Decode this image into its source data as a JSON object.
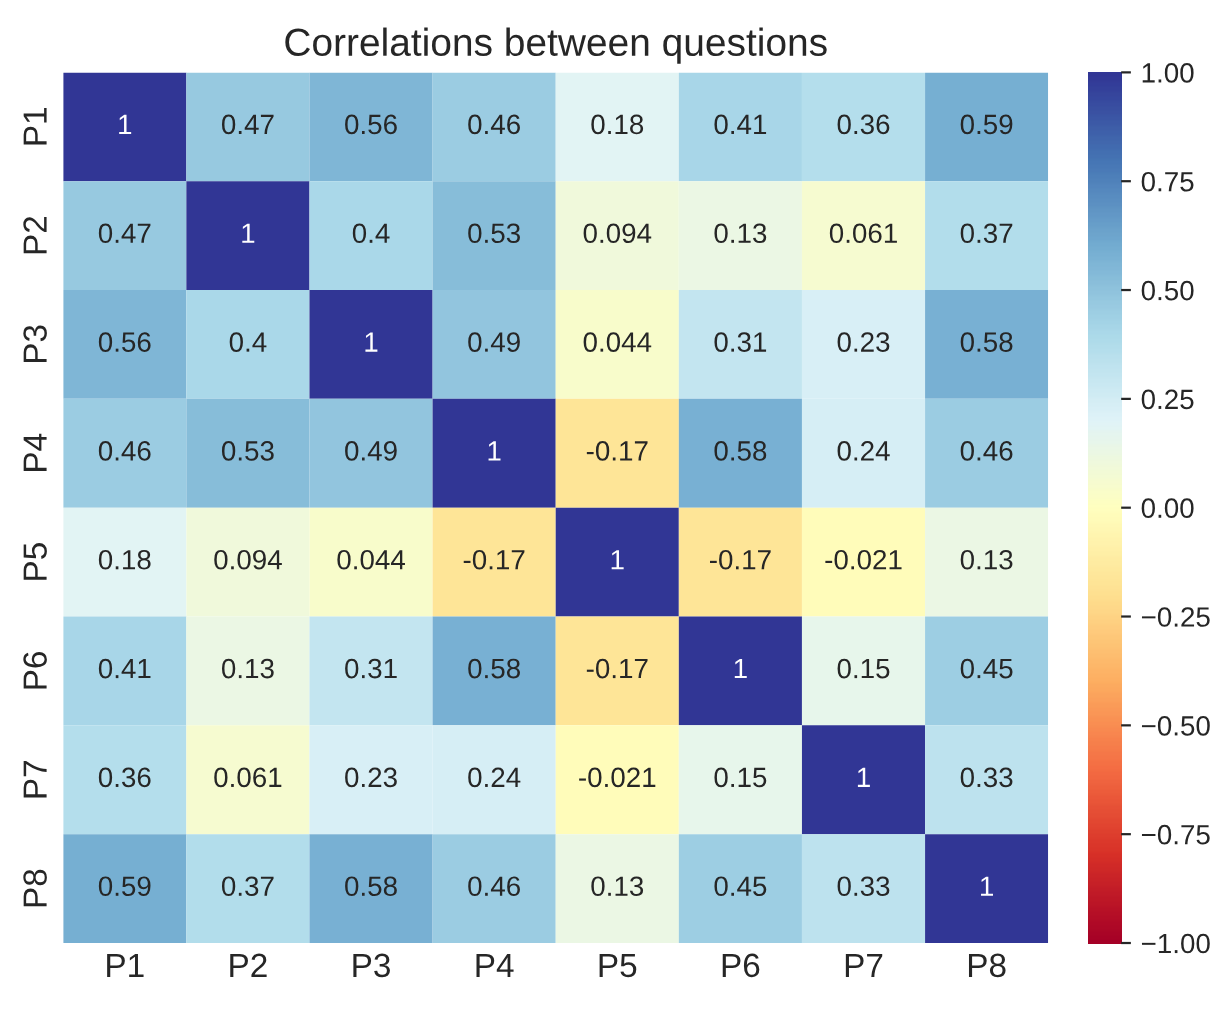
{
  "chart_data": {
    "type": "heatmap",
    "title": "Correlations between questions",
    "categories": [
      "P1",
      "P2",
      "P3",
      "P4",
      "P5",
      "P6",
      "P7",
      "P8"
    ],
    "y_categories": [
      "P1",
      "P2",
      "P3",
      "P4",
      "P5",
      "P6",
      "P7",
      "P8"
    ],
    "cells": [
      [
        1,
        0.47,
        0.56,
        0.46,
        0.18,
        0.41,
        0.36,
        0.59
      ],
      [
        0.47,
        1,
        0.4,
        0.53,
        0.094,
        0.13,
        0.061,
        0.37
      ],
      [
        0.56,
        0.4,
        1,
        0.49,
        0.044,
        0.31,
        0.23,
        0.58
      ],
      [
        0.46,
        0.53,
        0.49,
        1,
        -0.17,
        0.58,
        0.24,
        0.46
      ],
      [
        0.18,
        0.094,
        0.044,
        -0.17,
        1,
        -0.17,
        -0.021,
        0.13
      ],
      [
        0.41,
        0.13,
        0.31,
        0.58,
        -0.17,
        1,
        0.15,
        0.45
      ],
      [
        0.36,
        0.061,
        0.23,
        0.24,
        -0.021,
        0.15,
        1,
        0.33
      ],
      [
        0.59,
        0.37,
        0.58,
        0.46,
        0.13,
        0.45,
        0.33,
        1
      ]
    ],
    "data_labels": true,
    "clim": [
      -1,
      1
    ],
    "cticks": [
      {
        "value": -1,
        "label": "−1.00"
      },
      {
        "value": -0.75,
        "label": "−0.75"
      },
      {
        "value": -0.5,
        "label": "−0.50"
      },
      {
        "value": -0.25,
        "label": "−0.25"
      },
      {
        "value": 0,
        "label": "0.00"
      },
      {
        "value": 0.25,
        "label": "0.25"
      },
      {
        "value": 0.5,
        "label": "0.50"
      },
      {
        "value": 0.75,
        "label": "0.75"
      },
      {
        "value": 1,
        "label": "1.00"
      }
    ]
  }
}
